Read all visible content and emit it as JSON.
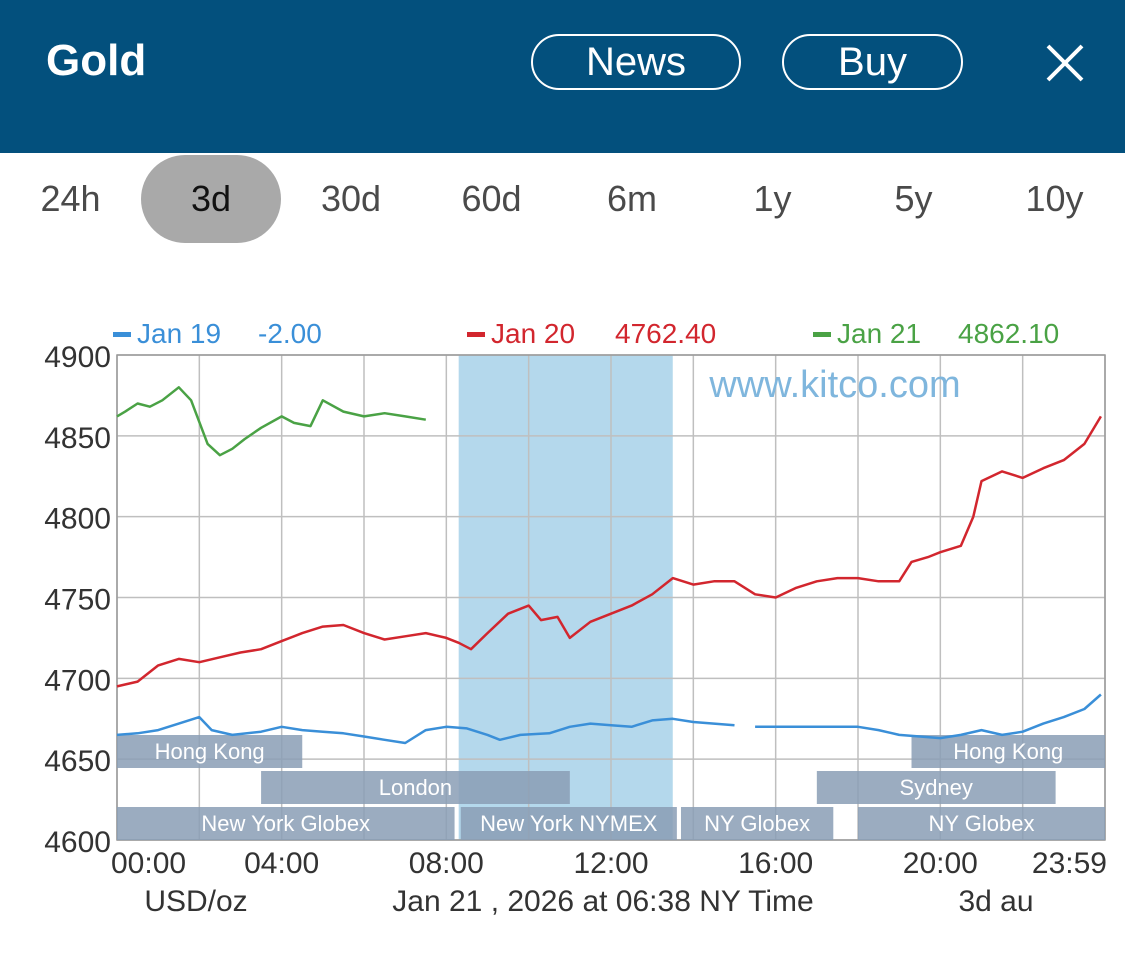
{
  "header": {
    "title": "Gold",
    "news_label": "News",
    "buy_label": "Buy",
    "close_icon": "close-icon"
  },
  "tabs": [
    {
      "label": "24h"
    },
    {
      "label": "3d",
      "active": true
    },
    {
      "label": "30d"
    },
    {
      "label": "60d"
    },
    {
      "label": "6m"
    },
    {
      "label": "1y"
    },
    {
      "label": "5y"
    },
    {
      "label": "10y"
    }
  ],
  "colors": {
    "header_bg": "#03507d",
    "series_jan19": "#3a8fd8",
    "series_jan20": "#d2262e",
    "series_jan21": "#4aa245",
    "nymex_band": "#b4d8ec",
    "session_bar": "#8a9db5",
    "grid": "#bfbfbf"
  },
  "chart_data": {
    "type": "line",
    "watermark": "www.kitco.com",
    "ylim": [
      4600,
      4900
    ],
    "yticks": [
      4900,
      4850,
      4800,
      4750,
      4700,
      4650,
      4600
    ],
    "xlim": [
      0,
      24
    ],
    "xticks": [
      {
        "v": 0,
        "label": "00:00"
      },
      {
        "v": 4,
        "label": "04:00"
      },
      {
        "v": 8,
        "label": "08:00"
      },
      {
        "v": 12,
        "label": "12:00"
      },
      {
        "v": 16,
        "label": "16:00"
      },
      {
        "v": 20,
        "label": "20:00"
      },
      {
        "v": 23.98,
        "label": "23:59"
      }
    ],
    "footer": {
      "unit": "USD/oz",
      "timestamp": "Jan 21 , 2026 at 06:38 NY Time",
      "right": "3d au"
    },
    "highlight_band": {
      "from": 8.3,
      "to": 13.5
    },
    "series": [
      {
        "name": "Jan 19",
        "value_label": "-2.00",
        "color": "#3a8fd8",
        "points": [
          [
            0,
            4665
          ],
          [
            0.5,
            4666
          ],
          [
            1,
            4668
          ],
          [
            1.5,
            4672
          ],
          [
            2,
            4676
          ],
          [
            2.3,
            4668
          ],
          [
            2.8,
            4665
          ],
          [
            3.5,
            4667
          ],
          [
            4,
            4670
          ],
          [
            4.5,
            4668
          ],
          [
            5,
            4667
          ],
          [
            5.5,
            4666
          ],
          [
            6,
            4664
          ],
          [
            6.5,
            4662
          ],
          [
            7,
            4660
          ],
          [
            7.5,
            4668
          ],
          [
            8,
            4670
          ],
          [
            8.5,
            4669
          ],
          [
            9,
            4665
          ],
          [
            9.3,
            4662
          ],
          [
            9.8,
            4665
          ],
          [
            10.5,
            4666
          ],
          [
            11,
            4670
          ],
          [
            11.5,
            4672
          ],
          [
            12,
            4671
          ],
          [
            12.5,
            4670
          ],
          [
            13,
            4674
          ],
          [
            13.5,
            4675
          ],
          [
            14,
            4673
          ],
          [
            14.5,
            4672
          ],
          [
            15,
            4671
          ],
          null,
          [
            15.5,
            4670
          ],
          [
            16,
            4670
          ],
          [
            17,
            4670
          ],
          [
            18,
            4670
          ],
          [
            18.5,
            4668
          ],
          [
            19,
            4665
          ],
          [
            19.5,
            4664
          ],
          [
            20,
            4663
          ],
          [
            20.5,
            4665
          ],
          [
            21,
            4668
          ],
          [
            21.5,
            4665
          ],
          [
            22,
            4667
          ],
          [
            22.5,
            4672
          ],
          [
            23,
            4676
          ],
          [
            23.5,
            4681
          ],
          [
            23.9,
            4690
          ]
        ]
      },
      {
        "name": "Jan 20",
        "value_label": "4762.40",
        "color": "#d2262e",
        "points": [
          [
            0,
            4695
          ],
          [
            0.5,
            4698
          ],
          [
            1,
            4708
          ],
          [
            1.5,
            4712
          ],
          [
            2,
            4710
          ],
          [
            2.5,
            4713
          ],
          [
            3,
            4716
          ],
          [
            3.5,
            4718
          ],
          [
            4,
            4723
          ],
          [
            4.5,
            4728
          ],
          [
            5,
            4732
          ],
          [
            5.5,
            4733
          ],
          [
            6,
            4728
          ],
          [
            6.5,
            4724
          ],
          [
            7,
            4726
          ],
          [
            7.5,
            4728
          ],
          [
            8,
            4725
          ],
          [
            8.3,
            4722
          ],
          [
            8.6,
            4718
          ],
          [
            9,
            4728
          ],
          [
            9.5,
            4740
          ],
          [
            10,
            4745
          ],
          [
            10.3,
            4736
          ],
          [
            10.7,
            4738
          ],
          [
            11,
            4725
          ],
          [
            11.5,
            4735
          ],
          [
            12,
            4740
          ],
          [
            12.5,
            4745
          ],
          [
            13,
            4752
          ],
          [
            13.5,
            4762
          ],
          [
            14,
            4758
          ],
          [
            14.5,
            4760
          ],
          [
            15,
            4760
          ],
          [
            15.5,
            4752
          ],
          [
            16,
            4750
          ],
          [
            16.5,
            4756
          ],
          [
            17,
            4760
          ],
          [
            17.5,
            4762
          ],
          [
            18,
            4762
          ],
          [
            18.5,
            4760
          ],
          [
            19,
            4760
          ],
          [
            19.3,
            4772
          ],
          [
            19.7,
            4775
          ],
          [
            20,
            4778
          ],
          [
            20.5,
            4782
          ],
          [
            20.8,
            4800
          ],
          [
            21,
            4822
          ],
          [
            21.5,
            4828
          ],
          [
            22,
            4824
          ],
          [
            22.5,
            4830
          ],
          [
            23,
            4835
          ],
          [
            23.5,
            4845
          ],
          [
            23.9,
            4862
          ]
        ]
      },
      {
        "name": "Jan 21",
        "value_label": "4862.10",
        "color": "#4aa245",
        "points": [
          [
            0,
            4862
          ],
          [
            0.2,
            4865
          ],
          [
            0.5,
            4870
          ],
          [
            0.8,
            4868
          ],
          [
            1.1,
            4872
          ],
          [
            1.5,
            4880
          ],
          [
            1.8,
            4872
          ],
          [
            2.2,
            4845
          ],
          [
            2.5,
            4838
          ],
          [
            2.8,
            4842
          ],
          [
            3.1,
            4848
          ],
          [
            3.5,
            4855
          ],
          [
            4,
            4862
          ],
          [
            4.3,
            4858
          ],
          [
            4.7,
            4856
          ],
          [
            5,
            4872
          ],
          [
            5.5,
            4865
          ],
          [
            6,
            4862
          ],
          [
            6.5,
            4864
          ],
          [
            7,
            4862
          ],
          [
            7.5,
            4860
          ]
        ]
      }
    ],
    "sessions": [
      {
        "label": "Hong Kong",
        "row": 0,
        "from": 0,
        "to": 4.5
      },
      {
        "label": "Hong Kong",
        "row": 0,
        "from": 19.3,
        "to": 24
      },
      {
        "label": "London",
        "row": 1,
        "from": 3.5,
        "to": 11
      },
      {
        "label": "Sydney",
        "row": 1,
        "from": 17,
        "to": 22.8
      },
      {
        "label": "New York Globex",
        "row": 2,
        "from": 0,
        "to": 8.2
      },
      {
        "label": "New York NYMEX",
        "row": 2,
        "from": 8.35,
        "to": 13.6
      },
      {
        "label": "NY Globex",
        "row": 2,
        "from": 13.7,
        "to": 17.4
      },
      {
        "label": "NY Globex",
        "row": 2,
        "from": 18,
        "to": 24
      }
    ]
  }
}
